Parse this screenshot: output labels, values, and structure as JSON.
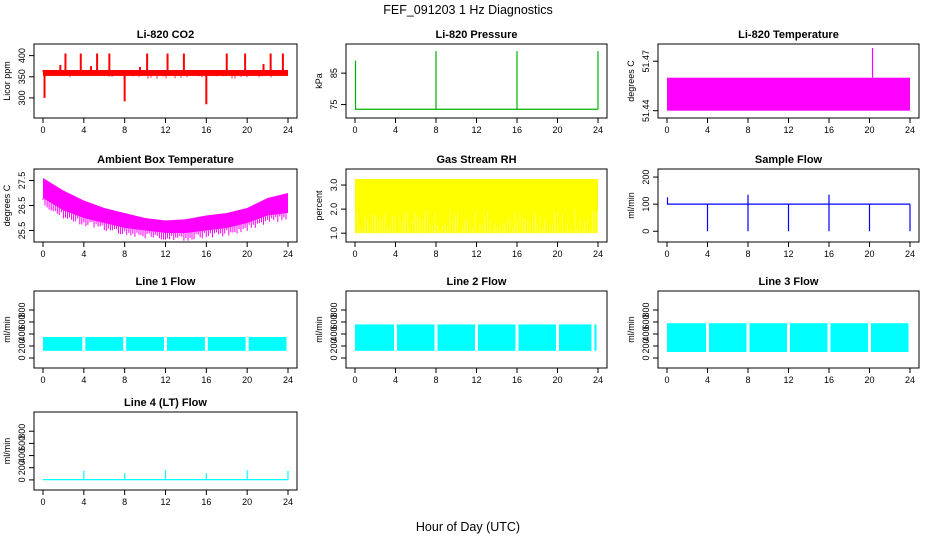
{
  "figure": {
    "title": "FEF_091203  1 Hz Diagnostics",
    "xlabel": "Hour of Day (UTC)"
  },
  "colors": {
    "red": "#ff0000",
    "green": "#00b000",
    "magenta": "#ff00ff",
    "yellow": "#ffff00",
    "blue": "#0000ff",
    "cyan": "#00ffff"
  },
  "chart_data": [
    {
      "type": "line",
      "title": "Li-820 CO2",
      "ylabel": "Licor ppm",
      "color": "red",
      "xlim": [
        0,
        24
      ],
      "xticks": [
        0,
        4,
        8,
        12,
        16,
        20,
        24
      ],
      "ylim": [
        262,
        418
      ],
      "yticks": [
        300,
        350,
        400
      ],
      "baseline": 360,
      "band": [
        352,
        366
      ],
      "spikes": [
        {
          "x": 2.2,
          "y": 405
        },
        {
          "x": 3.7,
          "y": 405
        },
        {
          "x": 5.3,
          "y": 405
        },
        {
          "x": 6.5,
          "y": 405
        },
        {
          "x": 8.0,
          "y": 292
        },
        {
          "x": 10.2,
          "y": 405
        },
        {
          "x": 12.2,
          "y": 405
        },
        {
          "x": 13.8,
          "y": 405
        },
        {
          "x": 16.0,
          "y": 285
        },
        {
          "x": 18.0,
          "y": 405
        },
        {
          "x": 19.8,
          "y": 405
        },
        {
          "x": 22.3,
          "y": 405
        },
        {
          "x": 23.5,
          "y": 405
        },
        {
          "x": 0.15,
          "y": 300
        },
        {
          "x": 1.7,
          "y": 378
        },
        {
          "x": 4.7,
          "y": 375
        },
        {
          "x": 9.5,
          "y": 373
        },
        {
          "x": 21.6,
          "y": 380
        }
      ]
    },
    {
      "type": "line",
      "title": "Li-820 Pressure",
      "ylabel": "kPa",
      "color": "green",
      "xlim": [
        0,
        24
      ],
      "xticks": [
        0,
        4,
        8,
        12,
        16,
        20,
        24
      ],
      "ylim": [
        72,
        93
      ],
      "yticks": [
        75,
        85
      ],
      "baseline": 73.5,
      "spikes": [
        {
          "x": 0.05,
          "y": 89
        },
        {
          "x": 8.0,
          "y": 92
        },
        {
          "x": 16.0,
          "y": 92
        },
        {
          "x": 24.0,
          "y": 92
        }
      ]
    },
    {
      "type": "area",
      "title": "Li-820 Temperature",
      "ylabel": "degrees C",
      "color": "magenta",
      "xlim": [
        0,
        24
      ],
      "xticks": [
        0,
        4,
        8,
        12,
        16,
        20,
        24
      ],
      "ylim": [
        51.438,
        51.478
      ],
      "yticks": [
        51.44,
        51.47
      ],
      "ytick_labels": [
        "51.44",
        "51.47"
      ],
      "band": [
        51.44,
        51.46
      ],
      "spikes": [
        {
          "x": 20.3,
          "y": 51.478
        }
      ]
    },
    {
      "type": "line",
      "title": "Ambient Box Temperature",
      "ylabel": "degrees C",
      "color": "magenta",
      "xlim": [
        0,
        24
      ],
      "xticks": [
        0,
        4,
        8,
        12,
        16,
        20,
        24
      ],
      "ylim": [
        25.2,
        27.8
      ],
      "yticks": [
        25.5,
        26.5,
        27.5
      ],
      "ytick_labels": [
        "25.5",
        "26.5",
        "27.5"
      ],
      "upper": [
        {
          "x": 0,
          "y": 27.6
        },
        {
          "x": 2,
          "y": 27.1
        },
        {
          "x": 4,
          "y": 26.7
        },
        {
          "x": 6,
          "y": 26.4
        },
        {
          "x": 8,
          "y": 26.2
        },
        {
          "x": 10,
          "y": 26.0
        },
        {
          "x": 12,
          "y": 25.9
        },
        {
          "x": 14,
          "y": 25.95
        },
        {
          "x": 16,
          "y": 26.1
        },
        {
          "x": 18,
          "y": 26.2
        },
        {
          "x": 20,
          "y": 26.4
        },
        {
          "x": 22,
          "y": 26.8
        },
        {
          "x": 24,
          "y": 27.0
        }
      ],
      "lower": [
        {
          "x": 0,
          "y": 26.8
        },
        {
          "x": 2,
          "y": 26.3
        },
        {
          "x": 4,
          "y": 26.0
        },
        {
          "x": 6,
          "y": 25.8
        },
        {
          "x": 8,
          "y": 25.6
        },
        {
          "x": 10,
          "y": 25.5
        },
        {
          "x": 12,
          "y": 25.4
        },
        {
          "x": 14,
          "y": 25.4
        },
        {
          "x": 16,
          "y": 25.5
        },
        {
          "x": 18,
          "y": 25.6
        },
        {
          "x": 20,
          "y": 25.8
        },
        {
          "x": 22,
          "y": 26.1
        },
        {
          "x": 24,
          "y": 26.2
        }
      ]
    },
    {
      "type": "area",
      "title": "Gas Stream RH",
      "ylabel": "percent",
      "color": "yellow",
      "xlim": [
        0,
        24
      ],
      "xticks": [
        0,
        4,
        8,
        12,
        16,
        20,
        24
      ],
      "ylim": [
        0.8,
        3.5
      ],
      "yticks": [
        1.0,
        2.0,
        3.0
      ],
      "ytick_labels": [
        "1.0",
        "2.0",
        "3.0"
      ],
      "band": [
        1.0,
        3.25
      ]
    },
    {
      "type": "line",
      "title": "Sample Flow",
      "ylabel": "ml/min",
      "color": "blue",
      "xlim": [
        0,
        24
      ],
      "xticks": [
        0,
        4,
        8,
        12,
        16,
        20,
        24
      ],
      "ylim": [
        -25,
        215
      ],
      "yticks": [
        0,
        100,
        200
      ],
      "baseline": 100,
      "spikes": [
        {
          "x": 0.05,
          "y": 125
        },
        {
          "x": 4.0,
          "y": 0
        },
        {
          "x": 8.0,
          "y": 135
        },
        {
          "x": 8.0,
          "y": 0
        },
        {
          "x": 12.0,
          "y": 0
        },
        {
          "x": 16.0,
          "y": 135
        },
        {
          "x": 16.0,
          "y": 0
        },
        {
          "x": 20.0,
          "y": 0
        },
        {
          "x": 24.0,
          "y": 0
        }
      ]
    },
    {
      "type": "area",
      "title": "Line 1 Flow",
      "ylabel": "ml/min",
      "color": "cyan",
      "xlim": [
        0,
        24
      ],
      "xticks": [
        0,
        4,
        8,
        12,
        16,
        20,
        24
      ],
      "ylim": [
        -100,
        1050
      ],
      "yticks": [
        0,
        200,
        400,
        600,
        800
      ],
      "band": [
        120,
        350
      ],
      "gaps": [
        4,
        8,
        12,
        16,
        20
      ]
    },
    {
      "type": "area",
      "title": "Line 2 Flow",
      "ylabel": "ml/min",
      "color": "cyan",
      "xlim": [
        0,
        24
      ],
      "xticks": [
        0,
        4,
        8,
        12,
        16,
        20,
        24
      ],
      "ylim": [
        -100,
        1050
      ],
      "yticks": [
        0,
        200,
        400,
        600,
        800
      ],
      "band": [
        120,
        560
      ],
      "gaps": [
        4,
        8,
        12,
        16,
        20,
        23.5
      ]
    },
    {
      "type": "area",
      "title": "Line 3 Flow",
      "ylabel": "ml/min",
      "color": "cyan",
      "xlim": [
        0,
        24
      ],
      "xticks": [
        0,
        4,
        8,
        12,
        16,
        20,
        24
      ],
      "ylim": [
        -100,
        1050
      ],
      "yticks": [
        0,
        200,
        400,
        600,
        800
      ],
      "band": [
        100,
        580
      ],
      "gaps": [
        4,
        8,
        12,
        16,
        20
      ]
    },
    {
      "type": "line",
      "title": "Line 4 (LT) Flow",
      "ylabel": "ml/min",
      "color": "cyan",
      "xlim": [
        0,
        24
      ],
      "xticks": [
        0,
        4,
        8,
        12,
        16,
        20,
        24
      ],
      "ylim": [
        -100,
        1050
      ],
      "yticks": [
        0,
        200,
        400,
        600,
        800
      ],
      "baseline": 5,
      "spikes": [
        {
          "x": 4,
          "y": 150
        },
        {
          "x": 8,
          "y": 110
        },
        {
          "x": 12,
          "y": 160
        },
        {
          "x": 16,
          "y": 110
        },
        {
          "x": 20,
          "y": 160
        },
        {
          "x": 24,
          "y": 150
        }
      ]
    }
  ]
}
